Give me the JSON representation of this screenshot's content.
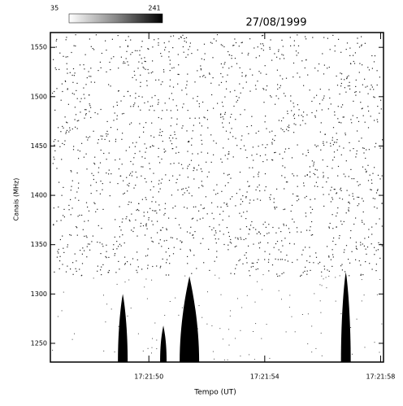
{
  "chart_data": {
    "type": "spectrogram",
    "title": "27/08/1999",
    "xlabel": "Tempo (UT)",
    "ylabel": "Canais (MHz)",
    "xlim": [
      62506.6,
      62518.1
    ],
    "xticks": [
      {
        "value": 62510,
        "label": "17:21:50"
      },
      {
        "value": 62514,
        "label": "17:21:54"
      },
      {
        "value": 62518,
        "label": "17:21:58"
      }
    ],
    "ylim": [
      1231,
      1565
    ],
    "yticks": [
      1250,
      1300,
      1350,
      1400,
      1450,
      1500,
      1550
    ],
    "colorbar": {
      "lim": [
        35,
        241
      ]
    },
    "bursts": {
      "x": [
        62509.1,
        62510.5,
        62511.4,
        62516.8
      ],
      "values": [
        1300,
        1268,
        1318,
        1322
      ],
      "color": "#000000"
    }
  }
}
